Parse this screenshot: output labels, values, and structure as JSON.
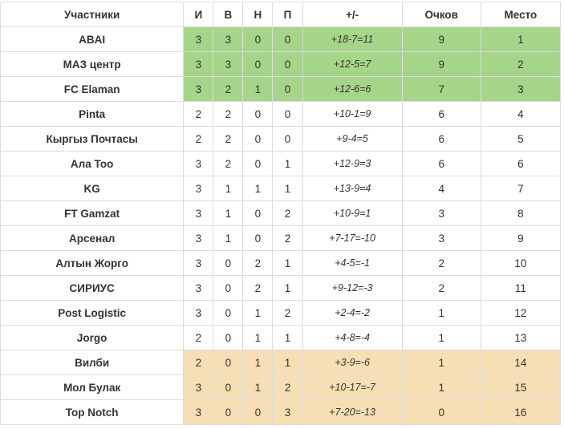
{
  "colors": {
    "promotion_zone": "#a4d588",
    "relegation_zone": "#f6dfb4",
    "border": "#dcdcdc"
  },
  "headers": [
    "Участники",
    "И",
    "В",
    "Н",
    "П",
    "+/-",
    "Очков",
    "Место"
  ],
  "rows": [
    {
      "team": "ABAI",
      "played": "3",
      "won": "3",
      "drawn": "0",
      "lost": "0",
      "goals": "+18-7=11",
      "points": "9",
      "place": "1",
      "zone": "promo"
    },
    {
      "team": "МАЗ центр",
      "played": "3",
      "won": "3",
      "drawn": "0",
      "lost": "0",
      "goals": "+12-5=7",
      "points": "9",
      "place": "2",
      "zone": "promo"
    },
    {
      "team": "FC Elaman",
      "played": "3",
      "won": "2",
      "drawn": "1",
      "lost": "0",
      "goals": "+12-6=6",
      "points": "7",
      "place": "3",
      "zone": "promo"
    },
    {
      "team": "Pinta",
      "played": "2",
      "won": "2",
      "drawn": "0",
      "lost": "0",
      "goals": "+10-1=9",
      "points": "6",
      "place": "4",
      "zone": "none"
    },
    {
      "team": "Кыргыз Почтасы",
      "played": "2",
      "won": "2",
      "drawn": "0",
      "lost": "0",
      "goals": "+9-4=5",
      "points": "6",
      "place": "5",
      "zone": "none"
    },
    {
      "team": "Ала Тоо",
      "played": "3",
      "won": "2",
      "drawn": "0",
      "lost": "1",
      "goals": "+12-9=3",
      "points": "6",
      "place": "6",
      "zone": "none"
    },
    {
      "team": "KG",
      "played": "3",
      "won": "1",
      "drawn": "1",
      "lost": "1",
      "goals": "+13-9=4",
      "points": "4",
      "place": "7",
      "zone": "none"
    },
    {
      "team": "FT Gamzat",
      "played": "3",
      "won": "1",
      "drawn": "0",
      "lost": "2",
      "goals": "+10-9=1",
      "points": "3",
      "place": "8",
      "zone": "none"
    },
    {
      "team": "Арсенал",
      "played": "3",
      "won": "1",
      "drawn": "0",
      "lost": "2",
      "goals": "+7-17=-10",
      "points": "3",
      "place": "9",
      "zone": "none"
    },
    {
      "team": "Алтын Жорго",
      "played": "3",
      "won": "0",
      "drawn": "2",
      "lost": "1",
      "goals": "+4-5=-1",
      "points": "2",
      "place": "10",
      "zone": "none"
    },
    {
      "team": "СИРИУС",
      "played": "3",
      "won": "0",
      "drawn": "2",
      "lost": "1",
      "goals": "+9-12=-3",
      "points": "2",
      "place": "11",
      "zone": "none"
    },
    {
      "team": "Post Logistic",
      "played": "3",
      "won": "0",
      "drawn": "1",
      "lost": "2",
      "goals": "+2-4=-2",
      "points": "1",
      "place": "12",
      "zone": "none"
    },
    {
      "team": "Jorgo",
      "played": "2",
      "won": "0",
      "drawn": "1",
      "lost": "1",
      "goals": "+4-8=-4",
      "points": "1",
      "place": "13",
      "zone": "none"
    },
    {
      "team": "Вилби",
      "played": "2",
      "won": "0",
      "drawn": "1",
      "lost": "1",
      "goals": "+3-9=-6",
      "points": "1",
      "place": "14",
      "zone": "releg"
    },
    {
      "team": "Мол Булак",
      "played": "3",
      "won": "0",
      "drawn": "1",
      "lost": "2",
      "goals": "+10-17=-7",
      "points": "1",
      "place": "15",
      "zone": "releg"
    },
    {
      "team": "Top Notch",
      "played": "3",
      "won": "0",
      "drawn": "0",
      "lost": "3",
      "goals": "+7-20=-13",
      "points": "0",
      "place": "16",
      "zone": "releg"
    }
  ]
}
